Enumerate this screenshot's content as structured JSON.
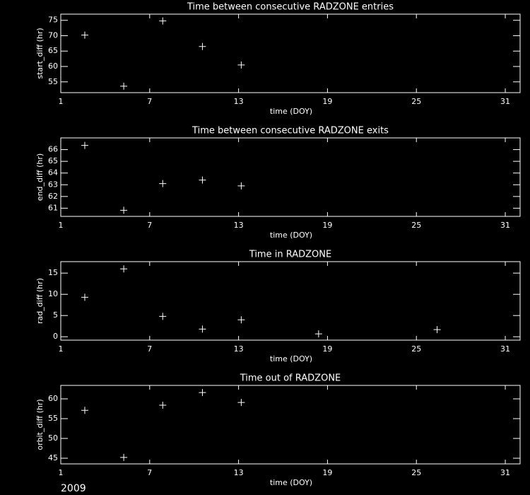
{
  "chart_data": [
    {
      "type": "scatter",
      "title": "Time between consecutive RADZONE entries",
      "x_label": "time (DOY)",
      "y_label": "start_diff (hr)",
      "x": [
        2.62,
        5.25,
        7.88,
        10.56,
        13.18
      ],
      "values": [
        70.2,
        53.6,
        74.8,
        66.5,
        60.5
      ],
      "color": "#ffffff",
      "xlim": [
        1,
        32
      ],
      "xticks": [
        1,
        7,
        13,
        19,
        25,
        31
      ],
      "ylim": [
        51.5,
        77
      ],
      "yticks": [
        55,
        60,
        65,
        70,
        75
      ]
    },
    {
      "type": "scatter",
      "title": "Time between consecutive RADZONE exits",
      "x_label": "time (DOY)",
      "y_label": "end_diff (hr)",
      "x": [
        2.62,
        5.25,
        7.88,
        10.56,
        13.18
      ],
      "values": [
        66.36,
        60.82,
        63.1,
        63.4,
        62.9
      ],
      "color": "#ffffff",
      "xlim": [
        1,
        32
      ],
      "xticks": [
        1,
        7,
        13,
        19,
        25,
        31
      ],
      "ylim": [
        60.3,
        67
      ],
      "yticks": [
        61,
        62,
        63,
        64,
        65,
        66
      ]
    },
    {
      "type": "scatter",
      "title": "Time in RADZONE",
      "x_label": "time (DOY)",
      "y_label": "rad_diff (hr)",
      "x": [
        2.62,
        5.25,
        7.88,
        10.56,
        13.18,
        18.4,
        26.4
      ],
      "values": [
        9.3,
        16.0,
        4.8,
        1.8,
        4.0,
        0.67,
        1.67
      ],
      "color": "#ffffff",
      "xlim": [
        1,
        32
      ],
      "xticks": [
        1,
        7,
        13,
        19,
        25,
        31
      ],
      "ylim": [
        -0.8,
        17.7
      ],
      "yticks": [
        0,
        5,
        10,
        15
      ]
    },
    {
      "type": "scatter",
      "title": "Time out of RADZONE",
      "x_label": "time (DOY)",
      "y_label": "orbit_diff (hr)",
      "x": [
        2.62,
        5.25,
        7.88,
        10.56,
        13.18
      ],
      "values": [
        57.1,
        45.2,
        58.4,
        61.6,
        59.1
      ],
      "color": "#ffffff",
      "xlim": [
        1,
        32
      ],
      "xticks": [
        1,
        7,
        13,
        19,
        25,
        31
      ],
      "ylim": [
        43.57,
        63.4
      ],
      "yticks": [
        45,
        50,
        55,
        60
      ]
    }
  ],
  "footer": {
    "year": "2009"
  }
}
